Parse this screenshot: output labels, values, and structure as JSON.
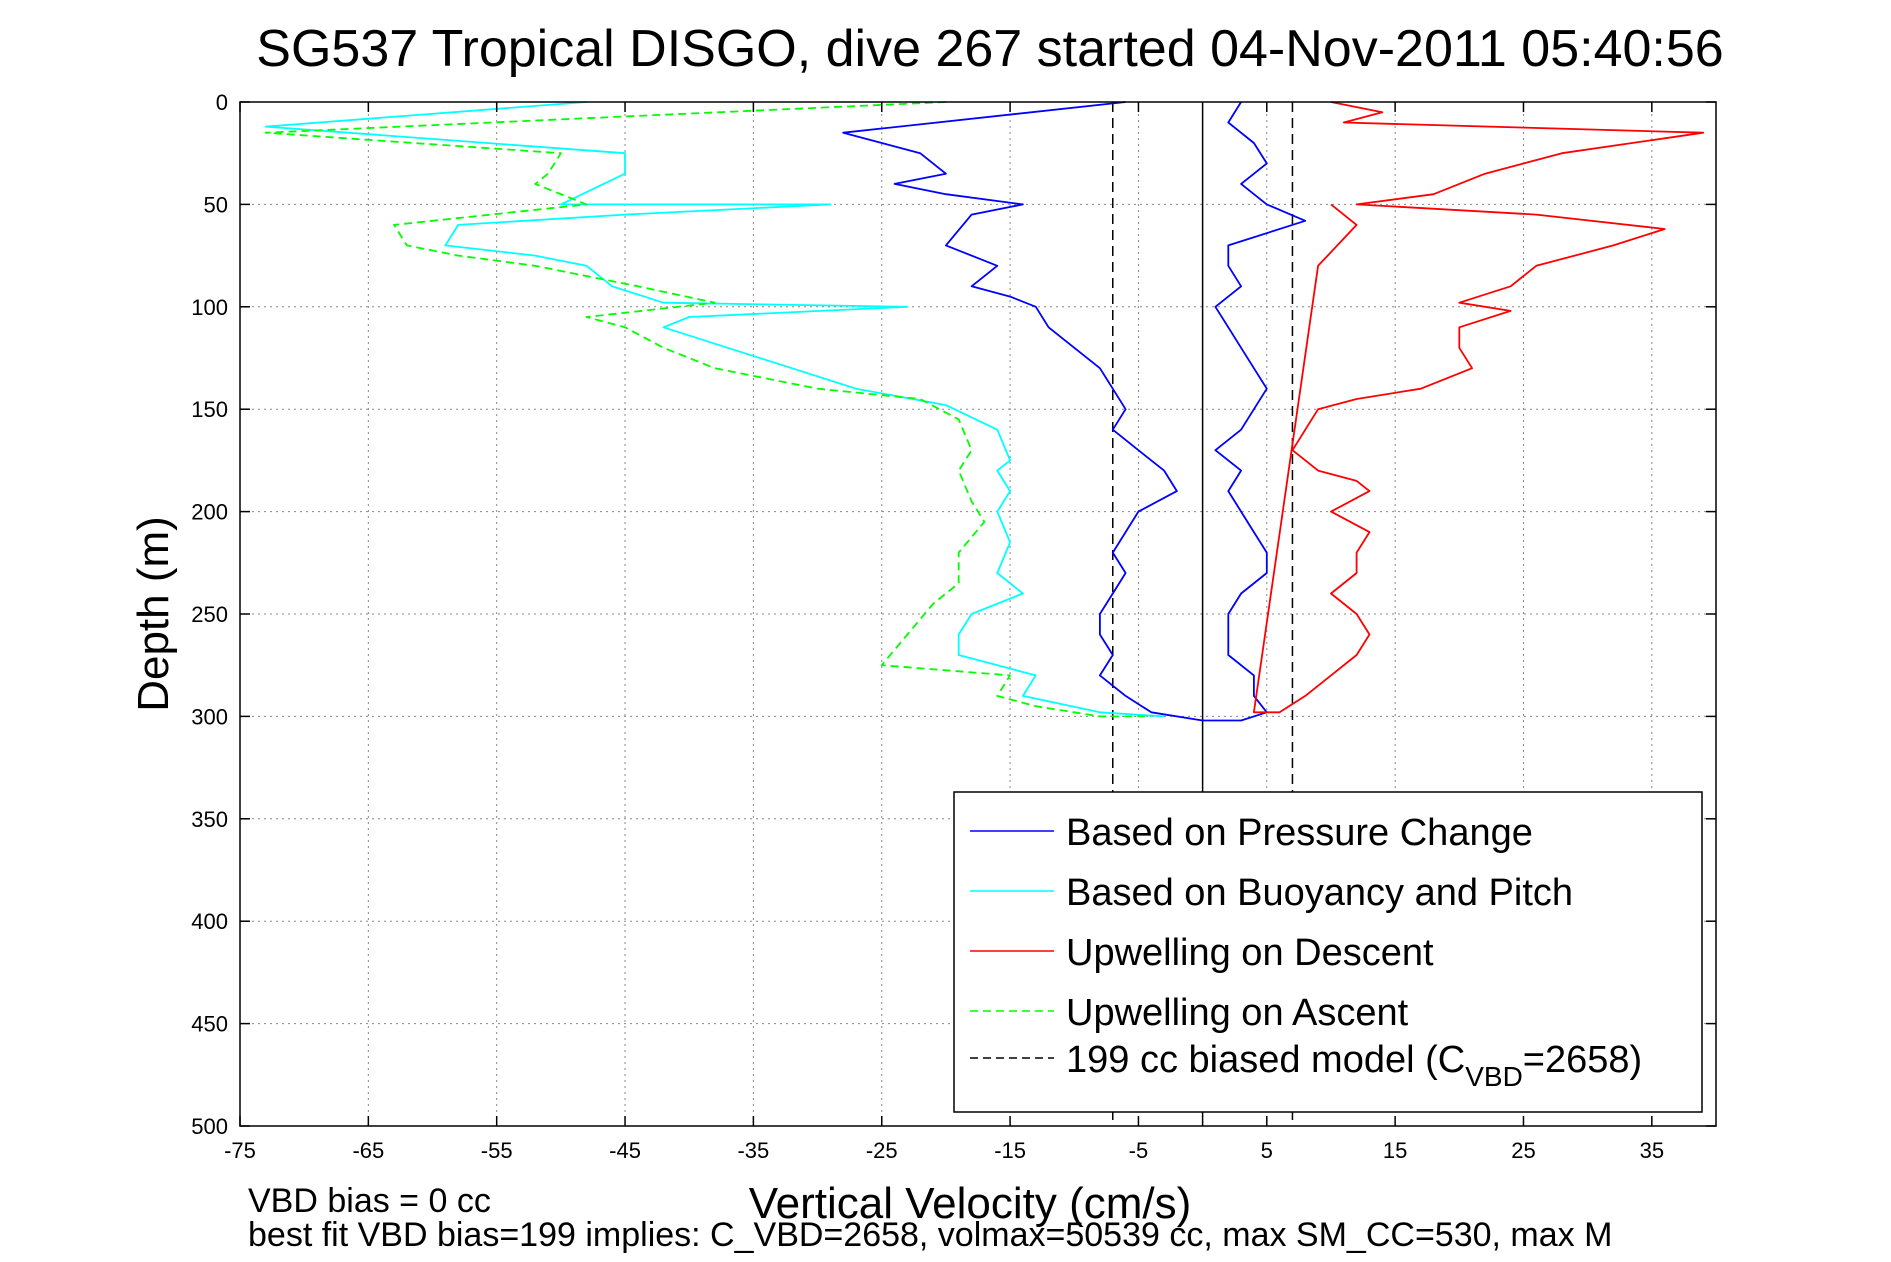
{
  "chart_data": {
    "type": "line",
    "title": "SG537 Tropical DISGO, dive 267 started 04-Nov-2011 05:40:56",
    "xlabel": "Vertical Velocity (cm/s)",
    "ylabel": "Depth (m)",
    "xlim": [
      -75,
      40
    ],
    "ylim": [
      0,
      500
    ],
    "y_reversed": true,
    "grid": true,
    "x_ticks": [
      -75,
      -65,
      -55,
      -45,
      -35,
      -25,
      -15,
      -5,
      5,
      15,
      25,
      35
    ],
    "y_ticks": [
      0,
      50,
      100,
      150,
      200,
      250,
      300,
      350,
      400,
      450,
      500
    ],
    "legend_position": "bottom-right",
    "footnote1": "VBD bias = 0 cc",
    "footnote2": "best fit VBD bias=199 implies: C_VBD=2658, volmax=50539 cc, max SM_CC=530, max M",
    "legend_model_prefix": "199 cc biased model (C",
    "legend_model_sub": "VBD",
    "legend_model_suffix": "=2658)",
    "colors": {
      "pressure": "#0000ff",
      "buoyancy": "#00ffff",
      "descent": "#ff0000",
      "ascent": "#00ff00",
      "model": "#000000"
    },
    "series": [
      {
        "name": "Based on Pressure Change",
        "color": "#0000ff",
        "style": "solid",
        "points": [
          [
            -6,
            0
          ],
          [
            -28,
            15
          ],
          [
            -22,
            25
          ],
          [
            -20,
            35
          ],
          [
            -24,
            40
          ],
          [
            -20,
            45
          ],
          [
            -14,
            50
          ],
          [
            -18,
            55
          ],
          [
            -20,
            70
          ],
          [
            -16,
            80
          ],
          [
            -18,
            90
          ],
          [
            -15,
            95
          ],
          [
            -13,
            100
          ],
          [
            -12,
            110
          ],
          [
            -10,
            120
          ],
          [
            -8,
            130
          ],
          [
            -7,
            140
          ],
          [
            -6,
            150
          ],
          [
            -7,
            160
          ],
          [
            -5,
            170
          ],
          [
            -3,
            180
          ],
          [
            -2,
            190
          ],
          [
            -5,
            200
          ],
          [
            -6,
            210
          ],
          [
            -7,
            220
          ],
          [
            -6,
            230
          ],
          [
            -7,
            240
          ],
          [
            -8,
            250
          ],
          [
            -8,
            260
          ],
          [
            -7,
            270
          ],
          [
            -8,
            280
          ],
          [
            -6,
            290
          ],
          [
            -4,
            298
          ],
          [
            0,
            302
          ],
          [
            3,
            302
          ],
          [
            5,
            298
          ],
          [
            4,
            290
          ],
          [
            4,
            280
          ],
          [
            2,
            270
          ],
          [
            2,
            260
          ],
          [
            2,
            250
          ],
          [
            3,
            240
          ],
          [
            5,
            230
          ],
          [
            5,
            220
          ],
          [
            4,
            210
          ],
          [
            3,
            200
          ],
          [
            2,
            190
          ],
          [
            3,
            180
          ],
          [
            1,
            170
          ],
          [
            3,
            160
          ],
          [
            4,
            150
          ],
          [
            5,
            140
          ],
          [
            4,
            130
          ],
          [
            3,
            120
          ],
          [
            2,
            110
          ],
          [
            1,
            100
          ],
          [
            3,
            90
          ],
          [
            2,
            80
          ],
          [
            2,
            70
          ],
          [
            8,
            58
          ],
          [
            5,
            50
          ],
          [
            3,
            40
          ],
          [
            5,
            30
          ],
          [
            4,
            20
          ],
          [
            2,
            10
          ],
          [
            3,
            0
          ]
        ]
      },
      {
        "name": "Based on Buoyancy and Pitch",
        "color": "#00ffff",
        "style": "solid",
        "points": [
          [
            -48,
            0
          ],
          [
            -73,
            12
          ],
          [
            -45,
            25
          ],
          [
            -45,
            35
          ],
          [
            -50,
            50
          ],
          [
            -29,
            50
          ],
          [
            -45,
            55
          ],
          [
            -58,
            60
          ],
          [
            -59,
            70
          ],
          [
            -52,
            75
          ],
          [
            -48,
            80
          ],
          [
            -46,
            90
          ],
          [
            -42,
            98
          ],
          [
            -23,
            100
          ],
          [
            -40,
            105
          ],
          [
            -42,
            110
          ],
          [
            -37,
            120
          ],
          [
            -32,
            130
          ],
          [
            -27,
            140
          ],
          [
            -20,
            148
          ],
          [
            -16,
            160
          ],
          [
            -15,
            175
          ],
          [
            -16,
            180
          ],
          [
            -15,
            190
          ],
          [
            -16,
            200
          ],
          [
            -15,
            215
          ],
          [
            -16,
            230
          ],
          [
            -14,
            240
          ],
          [
            -18,
            250
          ],
          [
            -19,
            260
          ],
          [
            -19,
            270
          ],
          [
            -13,
            280
          ],
          [
            -14,
            290
          ],
          [
            -8,
            298
          ],
          [
            -3,
            300
          ]
        ]
      },
      {
        "name": "Upwelling on Descent",
        "color": "#ff0000",
        "style": "solid",
        "points": [
          [
            10,
            0
          ],
          [
            14,
            5
          ],
          [
            11,
            10
          ],
          [
            39,
            15
          ],
          [
            28,
            25
          ],
          [
            22,
            35
          ],
          [
            18,
            45
          ],
          [
            12,
            50
          ],
          [
            26,
            55
          ],
          [
            36,
            62
          ],
          [
            32,
            70
          ],
          [
            26,
            80
          ],
          [
            24,
            90
          ],
          [
            20,
            98
          ],
          [
            24,
            102
          ],
          [
            20,
            110
          ],
          [
            20,
            120
          ],
          [
            21,
            130
          ],
          [
            17,
            140
          ],
          [
            12,
            145
          ],
          [
            9,
            150
          ],
          [
            8,
            160
          ],
          [
            7,
            170
          ],
          [
            9,
            180
          ],
          [
            12,
            185
          ],
          [
            13,
            190
          ],
          [
            10,
            200
          ],
          [
            13,
            210
          ],
          [
            12,
            220
          ],
          [
            12,
            230
          ],
          [
            10,
            240
          ],
          [
            12,
            250
          ],
          [
            13,
            260
          ],
          [
            12,
            270
          ],
          [
            10,
            280
          ],
          [
            8,
            290
          ],
          [
            6,
            298
          ],
          [
            4,
            298
          ],
          [
            9,
            80
          ],
          [
            12,
            60
          ],
          [
            10,
            50
          ]
        ]
      },
      {
        "name": "Upwelling on Ascent",
        "color": "#00ff00",
        "style": "dashed",
        "points": [
          [
            -20,
            0
          ],
          [
            -73,
            15
          ],
          [
            -50,
            25
          ],
          [
            -51,
            35
          ],
          [
            -52,
            40
          ],
          [
            -48,
            50
          ],
          [
            -63,
            60
          ],
          [
            -62,
            70
          ],
          [
            -58,
            75
          ],
          [
            -52,
            80
          ],
          [
            -44,
            90
          ],
          [
            -38,
            98
          ],
          [
            -48,
            105
          ],
          [
            -45,
            110
          ],
          [
            -42,
            120
          ],
          [
            -38,
            130
          ],
          [
            -30,
            140
          ],
          [
            -22,
            145
          ],
          [
            -19,
            155
          ],
          [
            -18,
            170
          ],
          [
            -19,
            180
          ],
          [
            -18,
            195
          ],
          [
            -17,
            205
          ],
          [
            -19,
            220
          ],
          [
            -19,
            235
          ],
          [
            -21,
            245
          ],
          [
            -23,
            260
          ],
          [
            -25,
            275
          ],
          [
            -15,
            280
          ],
          [
            -16,
            290
          ],
          [
            -13,
            295
          ],
          [
            -8,
            300
          ],
          [
            -4,
            300
          ]
        ]
      },
      {
        "name": "199 cc biased model (CVBD=2658)",
        "color": "#000000",
        "style": "dashed",
        "points": []
      }
    ],
    "model_lines_x": [
      -7,
      7
    ],
    "zero_line_x": 0
  }
}
